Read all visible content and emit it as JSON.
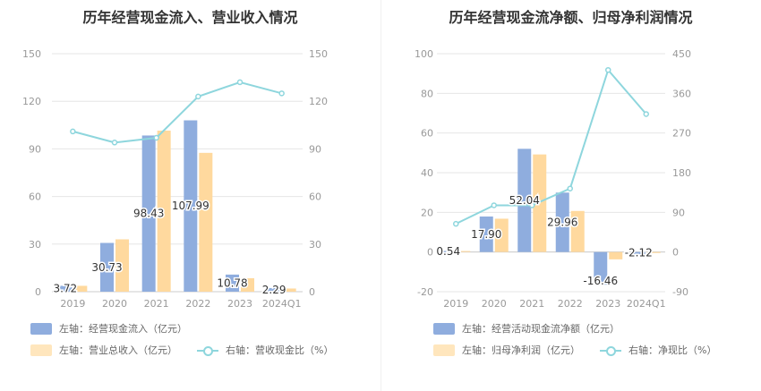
{
  "chart_data": [
    {
      "type": "bar",
      "title": "历年经营现金流入、营业收入情况",
      "categories": [
        "2019",
        "2020",
        "2021",
        "2022",
        "2023",
        "2024Q1"
      ],
      "left_axis": {
        "min": 0,
        "max": 150,
        "ticks": [
          "0",
          "30",
          "60",
          "90",
          "120",
          "150"
        ]
      },
      "right_axis": {
        "min": 0,
        "max": 150,
        "ticks": [
          "0",
          "30",
          "60",
          "90",
          "120",
          "150"
        ]
      },
      "series": [
        {
          "name": "左轴：经营现金流入（亿元）",
          "axis": "left",
          "kind": "bar",
          "color": "#8fadde",
          "values": [
            3.72,
            30.73,
            98.43,
            107.99,
            10.78,
            2.29
          ],
          "labels": [
            "3.72",
            "30.73",
            "98.43",
            "107.99",
            "10.78",
            "2.29"
          ]
        },
        {
          "name": "左轴：营业总收入（亿元）",
          "axis": "left",
          "kind": "bar",
          "color": "#ffd99e",
          "values": [
            3.7,
            33.0,
            101.5,
            87.5,
            8.5,
            2.0
          ]
        },
        {
          "name": "右轴：营收现金比（%）",
          "axis": "right",
          "kind": "line",
          "color": "#8ed6dd",
          "values": [
            101,
            94,
            97,
            123,
            132,
            125
          ]
        }
      ],
      "grid": true,
      "legend_position": "bottom-left"
    },
    {
      "type": "bar",
      "title": "历年经营现金流净额、归母净利润情况",
      "categories": [
        "2019",
        "2020",
        "2021",
        "2022",
        "2023",
        "2024Q1"
      ],
      "left_axis": {
        "min": -20,
        "max": 100,
        "ticks": [
          "-20",
          "0",
          "20",
          "40",
          "60",
          "80",
          "100"
        ]
      },
      "right_axis": {
        "min": -90,
        "max": 450,
        "ticks": [
          "-90",
          "0",
          "90",
          "180",
          "270",
          "360",
          "450"
        ]
      },
      "series": [
        {
          "name": "左轴：经营活动现金流净额（亿元）",
          "axis": "left",
          "kind": "bar",
          "color": "#8fadde",
          "values": [
            0.54,
            17.9,
            52.04,
            29.96,
            -16.46,
            -2.12
          ],
          "labels": [
            "0.54",
            "17.90",
            "52.04",
            "29.96",
            "-16.46",
            "-2.12"
          ]
        },
        {
          "name": "左轴：归母净利润（亿元）",
          "axis": "left",
          "kind": "bar",
          "color": "#ffd99e",
          "values": [
            0.5,
            16.8,
            49.2,
            20.7,
            -3.7,
            -0.5
          ]
        },
        {
          "name": "右轴：净现比（%）",
          "axis": "right",
          "kind": "line",
          "color": "#8ed6dd",
          "values": [
            64,
            106,
            106,
            144,
            413,
            313
          ]
        }
      ],
      "grid": true,
      "legend_position": "bottom-left"
    }
  ]
}
